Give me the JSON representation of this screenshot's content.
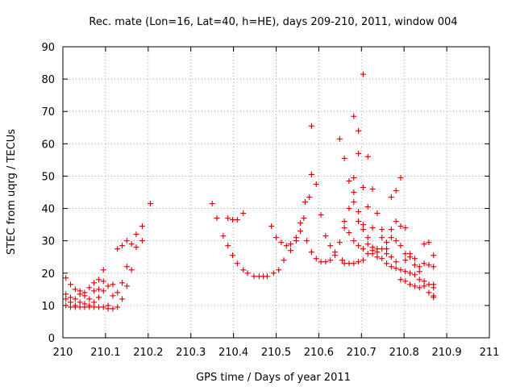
{
  "chart_data": {
    "type": "scatter",
    "title": "Rec. mate (Lon=16, Lat=40, h=HE), days 209-210, 2011, window 004",
    "xlabel": "GPS time / Days of year 2011",
    "ylabel": "STEC from uqrg / TECUs",
    "xlim": [
      210,
      211
    ],
    "ylim": [
      0,
      90
    ],
    "grid": true,
    "marker": "+",
    "marker_color": "#cc0000",
    "x_ticks": [
      "210",
      "210.1",
      "210.2",
      "210.3",
      "210.4",
      "210.5",
      "210.6",
      "210.7",
      "210.8",
      "210.9",
      "211"
    ],
    "y_ticks": [
      "0",
      "10",
      "20",
      "30",
      "40",
      "50",
      "60",
      "70",
      "80",
      "90"
    ],
    "series": [
      {
        "name": "STEC",
        "points": [
          [
            210.007,
            18.5
          ],
          [
            210.007,
            13.5
          ],
          [
            210.007,
            12.0
          ],
          [
            210.007,
            10.0
          ],
          [
            210.018,
            16.5
          ],
          [
            210.018,
            12.5
          ],
          [
            210.018,
            11.0
          ],
          [
            210.018,
            9.5
          ],
          [
            210.029,
            15.0
          ],
          [
            210.029,
            12.0
          ],
          [
            210.029,
            10.0
          ],
          [
            210.029,
            9.5
          ],
          [
            210.04,
            14.5
          ],
          [
            210.04,
            13.5
          ],
          [
            210.04,
            11.0
          ],
          [
            210.04,
            9.5
          ],
          [
            210.051,
            14.0
          ],
          [
            210.051,
            13.0
          ],
          [
            210.051,
            10.5
          ],
          [
            210.051,
            9.5
          ],
          [
            210.062,
            15.5
          ],
          [
            210.062,
            12.0
          ],
          [
            210.062,
            10.0
          ],
          [
            210.062,
            9.5
          ],
          [
            210.073,
            17.0
          ],
          [
            210.073,
            14.5
          ],
          [
            210.073,
            11.0
          ],
          [
            210.073,
            9.5
          ],
          [
            210.084,
            18.0
          ],
          [
            210.084,
            15.0
          ],
          [
            210.084,
            12.5
          ],
          [
            210.084,
            9.5
          ],
          [
            210.095,
            21.0
          ],
          [
            210.095,
            17.5
          ],
          [
            210.095,
            14.5
          ],
          [
            210.095,
            9.5
          ],
          [
            210.106,
            16.0
          ],
          [
            210.106,
            10.0
          ],
          [
            210.106,
            9.0
          ],
          [
            210.117,
            16.5
          ],
          [
            210.117,
            13.0
          ],
          [
            210.117,
            9.0
          ],
          [
            210.128,
            27.5
          ],
          [
            210.128,
            14.0
          ],
          [
            210.128,
            9.5
          ],
          [
            210.139,
            28.5
          ],
          [
            210.139,
            17.0
          ],
          [
            210.139,
            12.0
          ],
          [
            210.15,
            30.0
          ],
          [
            210.15,
            22.0
          ],
          [
            210.15,
            16.0
          ],
          [
            210.161,
            29.0
          ],
          [
            210.161,
            21.0
          ],
          [
            210.172,
            32.0
          ],
          [
            210.172,
            28.0
          ],
          [
            210.186,
            34.5
          ],
          [
            210.186,
            30.0
          ],
          [
            210.205,
            41.5
          ],
          [
            210.35,
            41.5
          ],
          [
            210.361,
            37.0
          ],
          [
            210.376,
            31.5
          ],
          [
            210.387,
            37.0
          ],
          [
            210.387,
            28.5
          ],
          [
            210.398,
            36.5
          ],
          [
            210.398,
            25.5
          ],
          [
            210.409,
            36.5
          ],
          [
            210.409,
            23.0
          ],
          [
            210.423,
            38.5
          ],
          [
            210.423,
            21.0
          ],
          [
            210.433,
            20.0
          ],
          [
            210.448,
            19.0
          ],
          [
            210.46,
            19.0
          ],
          [
            210.47,
            19.0
          ],
          [
            210.479,
            19.0
          ],
          [
            210.489,
            34.5
          ],
          [
            210.494,
            20.0
          ],
          [
            210.5,
            31.0
          ],
          [
            210.506,
            21.0
          ],
          [
            210.512,
            29.5
          ],
          [
            210.518,
            24.0
          ],
          [
            210.524,
            28.5
          ],
          [
            210.534,
            27.0
          ],
          [
            210.534,
            29.0
          ],
          [
            210.547,
            30.0
          ],
          [
            210.547,
            31.0
          ],
          [
            210.557,
            35.5
          ],
          [
            210.557,
            33.0
          ],
          [
            210.565,
            37.0
          ],
          [
            210.568,
            42.0
          ],
          [
            210.572,
            30.0
          ],
          [
            210.578,
            43.5
          ],
          [
            210.583,
            65.5
          ],
          [
            210.583,
            50.5
          ],
          [
            210.583,
            26.5
          ],
          [
            210.594,
            47.5
          ],
          [
            210.594,
            24.5
          ],
          [
            210.605,
            38.0
          ],
          [
            210.605,
            23.5
          ],
          [
            210.616,
            31.5
          ],
          [
            210.616,
            23.5
          ],
          [
            210.627,
            24.0
          ],
          [
            210.627,
            28.5
          ],
          [
            210.638,
            26.5
          ],
          [
            210.638,
            25.5
          ],
          [
            210.649,
            61.5
          ],
          [
            210.649,
            29.5
          ],
          [
            210.655,
            24.0
          ],
          [
            210.66,
            55.5
          ],
          [
            210.66,
            36.0
          ],
          [
            210.66,
            34.0
          ],
          [
            210.66,
            23.0
          ],
          [
            210.671,
            48.5
          ],
          [
            210.671,
            40.0
          ],
          [
            210.671,
            32.5
          ],
          [
            210.671,
            23.0
          ],
          [
            210.682,
            68.5
          ],
          [
            210.682,
            49.5
          ],
          [
            210.682,
            45.0
          ],
          [
            210.682,
            42.0
          ],
          [
            210.682,
            30.0
          ],
          [
            210.682,
            23.0
          ],
          [
            210.693,
            64.0
          ],
          [
            210.693,
            57.0
          ],
          [
            210.693,
            39.0
          ],
          [
            210.693,
            36.0
          ],
          [
            210.693,
            28.5
          ],
          [
            210.693,
            23.5
          ],
          [
            210.704,
            81.5
          ],
          [
            210.704,
            46.5
          ],
          [
            210.704,
            35.0
          ],
          [
            210.704,
            33.5
          ],
          [
            210.704,
            27.5
          ],
          [
            210.704,
            24.0
          ],
          [
            210.715,
            56.0
          ],
          [
            210.715,
            40.5
          ],
          [
            210.715,
            31.0
          ],
          [
            210.715,
            29.0
          ],
          [
            210.715,
            26.0
          ],
          [
            210.726,
            46.0
          ],
          [
            210.726,
            34.0
          ],
          [
            210.726,
            28.0
          ],
          [
            210.726,
            27.0
          ],
          [
            210.726,
            26.0
          ],
          [
            210.737,
            38.5
          ],
          [
            210.737,
            27.5
          ],
          [
            210.737,
            26.5
          ],
          [
            210.737,
            25.0
          ],
          [
            210.748,
            33.5
          ],
          [
            210.748,
            31.0
          ],
          [
            210.748,
            27.5
          ],
          [
            210.748,
            24.5
          ],
          [
            210.759,
            29.5
          ],
          [
            210.759,
            27.5
          ],
          [
            210.759,
            26.0
          ],
          [
            210.759,
            23.0
          ],
          [
            210.77,
            43.5
          ],
          [
            210.77,
            33.5
          ],
          [
            210.77,
            31.0
          ],
          [
            210.77,
            25.0
          ],
          [
            210.77,
            22.0
          ],
          [
            210.781,
            45.5
          ],
          [
            210.781,
            36.0
          ],
          [
            210.781,
            30.0
          ],
          [
            210.781,
            23.5
          ],
          [
            210.781,
            21.5
          ],
          [
            210.792,
            49.5
          ],
          [
            210.792,
            34.5
          ],
          [
            210.792,
            28.5
          ],
          [
            210.792,
            21.0
          ],
          [
            210.792,
            18.0
          ],
          [
            210.803,
            34.0
          ],
          [
            210.803,
            26.0
          ],
          [
            210.803,
            24.0
          ],
          [
            210.803,
            20.5
          ],
          [
            210.803,
            17.5
          ],
          [
            210.814,
            26.0
          ],
          [
            210.814,
            25.0
          ],
          [
            210.814,
            20.0
          ],
          [
            210.814,
            16.5
          ],
          [
            210.825,
            24.5
          ],
          [
            210.825,
            22.5
          ],
          [
            210.825,
            19.5
          ],
          [
            210.825,
            16.0
          ],
          [
            210.836,
            22.0
          ],
          [
            210.836,
            20.5
          ],
          [
            210.836,
            18.0
          ],
          [
            210.836,
            15.5
          ],
          [
            210.847,
            29.0
          ],
          [
            210.847,
            23.0
          ],
          [
            210.847,
            17.5
          ],
          [
            210.847,
            16.0
          ],
          [
            210.858,
            29.5
          ],
          [
            210.858,
            22.5
          ],
          [
            210.858,
            16.5
          ],
          [
            210.858,
            14.0
          ],
          [
            210.869,
            25.5
          ],
          [
            210.869,
            22.0
          ],
          [
            210.869,
            16.5
          ],
          [
            210.869,
            15.5
          ],
          [
            210.869,
            13.0
          ],
          [
            210.869,
            12.5
          ]
        ]
      }
    ]
  }
}
